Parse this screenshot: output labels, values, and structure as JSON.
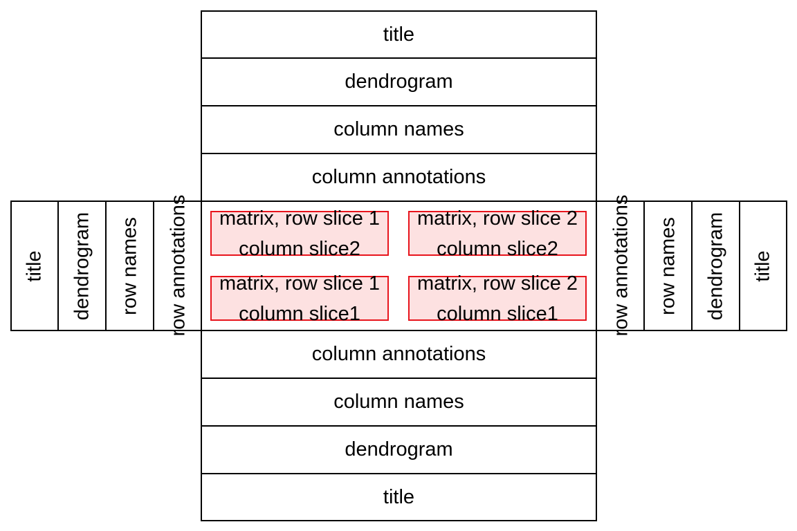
{
  "top_stack": {
    "title": "title",
    "dendrogram": "dendrogram",
    "column_names": "column names",
    "column_annotations": "column annotations"
  },
  "bottom_stack": {
    "column_annotations": "column annotations",
    "column_names": "column names",
    "dendrogram": "dendrogram",
    "title": "title"
  },
  "left_stack": {
    "title": "title",
    "dendrogram": "dendrogram",
    "row_names": "row names",
    "row_annotations": "row annotations"
  },
  "right_stack": {
    "row_annotations": "row annotations",
    "row_names": "row names",
    "dendrogram": "dendrogram",
    "title": "title"
  },
  "matrix": {
    "slices": [
      {
        "line1": "matrix, row slice 1",
        "line2": "column slice2"
      },
      {
        "line1": "matrix, row slice 2",
        "line2": "column slice2"
      },
      {
        "line1": "matrix, row slice 1",
        "line2": "column slice1"
      },
      {
        "line1": "matrix, row slice 2",
        "line2": "column slice1"
      }
    ]
  },
  "colors": {
    "border": "#000000",
    "slice_border": "#e8141c",
    "slice_fill": "#fde1e1"
  }
}
